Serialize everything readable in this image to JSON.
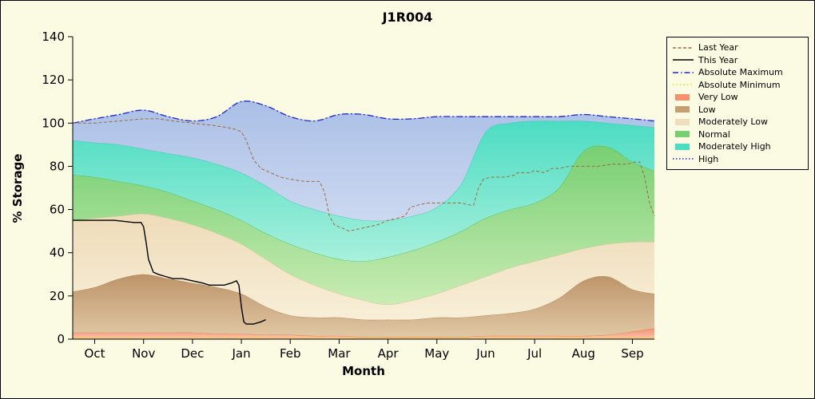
{
  "figure": {
    "background": "#fbfbe4",
    "border_color": "#000000"
  },
  "chart_data": {
    "type": "area",
    "title": "J1R004",
    "xlabel": "Month",
    "ylabel": "% Storage",
    "x_tick_labels": [
      "Oct",
      "Nov",
      "Dec",
      "Jan",
      "Feb",
      "Mar",
      "Apr",
      "May",
      "Jun",
      "Jul",
      "Aug",
      "Sep"
    ],
    "y_ticks": [
      0,
      20,
      40,
      60,
      80,
      100,
      120,
      140
    ],
    "ylim": [
      0,
      140
    ],
    "xlim": [
      -0.45,
      11.45
    ],
    "grid": false,
    "legend_position": "outside-right",
    "band_x": [
      -0.45,
      0,
      0.5,
      1,
      1.5,
      2,
      2.5,
      3,
      3.5,
      4,
      4.5,
      5,
      5.5,
      6,
      6.5,
      7,
      7.5,
      8,
      8.5,
      9,
      9.5,
      10,
      10.5,
      11,
      11.45
    ],
    "boundaries": {
      "very_low_top": [
        3,
        3,
        3,
        3,
        3,
        3,
        2.5,
        2.5,
        2,
        2,
        1.5,
        1.5,
        1,
        1,
        1,
        1,
        1,
        1.5,
        1.5,
        1.5,
        1.5,
        1.5,
        2,
        3.5,
        5
      ],
      "low_top": [
        22,
        24,
        28,
        30,
        28,
        26,
        24,
        21,
        15,
        11,
        10,
        10,
        9,
        9,
        9,
        10,
        10,
        11,
        12,
        14,
        19,
        27,
        29,
        23,
        21
      ],
      "mod_low_top": [
        55,
        56,
        57,
        58,
        56,
        53,
        49,
        44,
        37,
        30,
        25,
        21,
        18,
        16,
        18,
        21,
        25,
        29,
        33,
        36,
        39,
        42,
        44,
        45,
        45
      ],
      "normal_top": [
        76,
        75,
        73,
        71,
        68,
        64,
        60,
        55,
        49,
        44,
        40,
        37,
        36,
        38,
        41,
        45,
        50,
        56,
        60,
        63,
        70,
        87,
        89,
        82,
        78
      ],
      "mod_high_top": [
        92,
        91,
        90,
        88,
        86,
        84,
        81,
        77,
        71,
        64,
        60,
        57,
        55,
        55,
        57,
        61,
        72,
        96,
        100,
        101,
        101,
        101,
        100,
        99,
        98
      ],
      "abs_max": [
        100,
        102,
        104,
        106,
        103,
        101,
        103,
        110,
        108,
        103,
        101,
        104,
        104,
        102,
        102,
        103,
        103,
        103,
        103,
        103,
        103,
        104,
        103,
        102,
        101
      ]
    },
    "bands": [
      {
        "name": "Very Low",
        "lower": "zero",
        "upper": "very_low_top",
        "color_top": "#f4926f",
        "color_bottom": "#fbc4ad",
        "edge": "#e0784f"
      },
      {
        "name": "Low",
        "lower": "very_low_top",
        "upper": "low_top",
        "color_top": "#bd9369",
        "color_bottom": "#e0c8a4",
        "edge": "#a87e50"
      },
      {
        "name": "Moderately Low",
        "lower": "low_top",
        "upper": "mod_low_top",
        "color_top": "#eedbb9",
        "color_bottom": "#f8efd8",
        "edge": "#d8bd8e"
      },
      {
        "name": "Normal",
        "lower": "mod_low_top",
        "upper": "normal_top",
        "color_top": "#77cf72",
        "color_bottom": "#c9ecb4",
        "edge": "#4db84d"
      },
      {
        "name": "Moderately High",
        "lower": "normal_top",
        "upper": "mod_high_top",
        "color_top": "#4cdcc2",
        "color_bottom": "#a8f0dc",
        "edge": "#2cc8a8"
      },
      {
        "name": "High",
        "lower": "mod_high_top",
        "upper": "abs_max",
        "color_top": "#aabfe6",
        "color_bottom": "#ccd8f0",
        "edge": "#9db4dd"
      }
    ],
    "lines": [
      {
        "name": "absolute-minimum",
        "label": "Absolute Minimum",
        "color": "#ece000",
        "dash": "2 3",
        "width": 1.3,
        "points": [
          [
            -0.45,
            0.5
          ],
          [
            11.45,
            0.5
          ]
        ]
      },
      {
        "name": "absolute-maximum",
        "label": "Absolute Maximum",
        "color": "#2222cc",
        "dash": "8 3 2 3",
        "width": 1.3,
        "smooth": true,
        "boundary": "abs_max"
      },
      {
        "name": "last-year",
        "label": "Last Year",
        "color": "#9c6b3c",
        "dash": "4 2.5",
        "width": 1,
        "points": [
          [
            -0.45,
            100
          ],
          [
            0,
            100
          ],
          [
            0.5,
            101
          ],
          [
            1,
            102
          ],
          [
            1.3,
            102
          ],
          [
            1.6,
            101
          ],
          [
            2,
            100
          ],
          [
            2.4,
            99
          ],
          [
            2.7,
            98
          ],
          [
            2.9,
            97
          ],
          [
            3.0,
            96
          ],
          [
            3.1,
            92
          ],
          [
            3.25,
            83
          ],
          [
            3.4,
            79
          ],
          [
            3.6,
            77
          ],
          [
            3.8,
            75
          ],
          [
            4.0,
            74
          ],
          [
            4.3,
            73
          ],
          [
            4.6,
            73
          ],
          [
            4.7,
            68
          ],
          [
            4.8,
            57
          ],
          [
            4.9,
            53
          ],
          [
            5.0,
            52
          ],
          [
            5.2,
            50
          ],
          [
            5.4,
            51
          ],
          [
            5.6,
            52
          ],
          [
            5.8,
            53
          ],
          [
            6.0,
            55
          ],
          [
            6.2,
            56
          ],
          [
            6.35,
            57
          ],
          [
            6.45,
            61
          ],
          [
            6.6,
            62
          ],
          [
            6.8,
            63
          ],
          [
            7.0,
            63
          ],
          [
            7.3,
            63
          ],
          [
            7.5,
            63
          ],
          [
            7.7,
            62
          ],
          [
            7.75,
            62
          ],
          [
            7.85,
            70
          ],
          [
            7.95,
            74
          ],
          [
            8.1,
            75
          ],
          [
            8.4,
            75
          ],
          [
            8.6,
            76
          ],
          [
            8.65,
            77
          ],
          [
            8.9,
            77
          ],
          [
            9.0,
            78
          ],
          [
            9.2,
            77
          ],
          [
            9.35,
            79
          ],
          [
            9.5,
            79
          ],
          [
            9.7,
            80
          ],
          [
            10,
            80
          ],
          [
            10.3,
            80
          ],
          [
            10.6,
            81
          ],
          [
            10.9,
            81
          ],
          [
            11.05,
            82
          ],
          [
            11.15,
            82
          ],
          [
            11.25,
            75
          ],
          [
            11.35,
            63
          ],
          [
            11.45,
            57
          ]
        ]
      },
      {
        "name": "this-year",
        "label": "This Year",
        "color": "#000000",
        "dash": "",
        "width": 1.4,
        "points": [
          [
            -0.45,
            55
          ],
          [
            0,
            55
          ],
          [
            0.4,
            55
          ],
          [
            0.8,
            54
          ],
          [
            0.95,
            54
          ],
          [
            1.0,
            52
          ],
          [
            1.05,
            45
          ],
          [
            1.1,
            37
          ],
          [
            1.2,
            31
          ],
          [
            1.3,
            30
          ],
          [
            1.45,
            29
          ],
          [
            1.6,
            28
          ],
          [
            1.8,
            28
          ],
          [
            2.0,
            27
          ],
          [
            2.2,
            26
          ],
          [
            2.35,
            25
          ],
          [
            2.5,
            25
          ],
          [
            2.65,
            25
          ],
          [
            2.8,
            26
          ],
          [
            2.9,
            27
          ],
          [
            2.95,
            25
          ],
          [
            3.0,
            15
          ],
          [
            3.05,
            8
          ],
          [
            3.1,
            7
          ],
          [
            3.25,
            7
          ],
          [
            3.4,
            8
          ],
          [
            3.5,
            9
          ]
        ]
      }
    ]
  },
  "legend": {
    "entries": [
      {
        "label": "Last Year",
        "marker": "line",
        "color": "#9c6b3c",
        "dash": "4 2.5"
      },
      {
        "label": "This Year",
        "marker": "line",
        "color": "#000000",
        "dash": ""
      },
      {
        "label": "Absolute Maximum",
        "marker": "line",
        "color": "#2222cc",
        "dash": "7 3 1.5 3"
      },
      {
        "label": "Absolute Minimum",
        "marker": "line",
        "color": "#ece000",
        "dash": "1.5 3"
      },
      {
        "label": "Very Low",
        "marker": "fill",
        "color": "#f4926f"
      },
      {
        "label": "Low",
        "marker": "fill",
        "color": "#c79d72"
      },
      {
        "label": "Moderately Low",
        "marker": "fill",
        "color": "#f0ddbb"
      },
      {
        "label": "Normal",
        "marker": "fill",
        "color": "#77cf72"
      },
      {
        "label": "Moderately High",
        "marker": "fill",
        "color": "#4cdcc2"
      },
      {
        "label": "High",
        "marker": "line",
        "color": "#2222cc",
        "dash": "1.5 2.5"
      }
    ]
  }
}
